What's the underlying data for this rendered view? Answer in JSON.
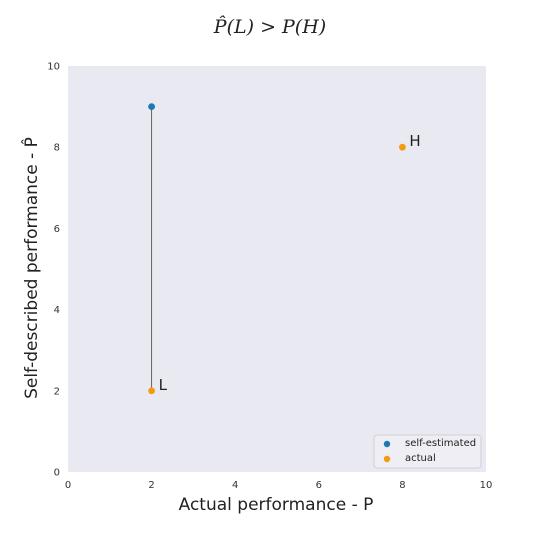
{
  "chart_data": {
    "type": "scatter",
    "title": "P̂(L) > P(H)",
    "xlabel": "Actual performance - P",
    "ylabel": "Self-described performance - P̂",
    "xlim": [
      0,
      10
    ],
    "ylim": [
      0,
      10
    ],
    "xticks": [
      0,
      2,
      4,
      6,
      8,
      10
    ],
    "yticks": [
      0,
      2,
      4,
      6,
      8,
      10
    ],
    "grid": false,
    "legend_position": "bottom-right",
    "series": [
      {
        "name": "self-estimated",
        "color": "#1f77b4",
        "points": [
          {
            "x": 2,
            "y": 9
          }
        ]
      },
      {
        "name": "actual",
        "color": "#f39c12",
        "points": [
          {
            "x": 2,
            "y": 2
          },
          {
            "x": 8,
            "y": 8
          }
        ]
      }
    ],
    "connectors": [
      {
        "x": 2,
        "y1": 2,
        "y2": 9
      }
    ],
    "annotations": [
      {
        "text": "L",
        "x": 2,
        "y": 2
      },
      {
        "text": "H",
        "x": 8,
        "y": 8
      }
    ]
  },
  "colors": {
    "plot_background": "#e9e9f1",
    "connector": "#555555"
  }
}
